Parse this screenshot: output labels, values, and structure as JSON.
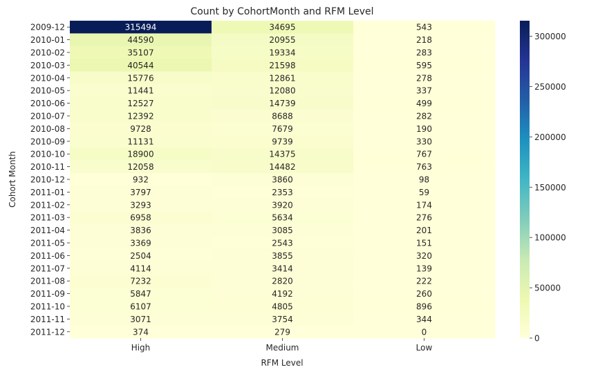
{
  "chart_data": {
    "type": "heatmap",
    "title": "Count by CohortMonth and RFM Level",
    "xlabel": "RFM Level",
    "ylabel": "Cohort Month",
    "x_categories": [
      "High",
      "Medium",
      "Low"
    ],
    "y_categories": [
      "2009-12",
      "2010-01",
      "2010-02",
      "2010-03",
      "2010-04",
      "2010-05",
      "2010-06",
      "2010-07",
      "2010-08",
      "2010-09",
      "2010-10",
      "2010-11",
      "2010-12",
      "2011-01",
      "2011-02",
      "2011-03",
      "2011-04",
      "2011-05",
      "2011-06",
      "2011-07",
      "2011-08",
      "2011-09",
      "2011-10",
      "2011-11",
      "2011-12"
    ],
    "values": [
      [
        315494,
        34695,
        543
      ],
      [
        44590,
        20955,
        218
      ],
      [
        35107,
        19334,
        283
      ],
      [
        40544,
        21598,
        595
      ],
      [
        15776,
        12861,
        278
      ],
      [
        11441,
        12080,
        337
      ],
      [
        12527,
        14739,
        499
      ],
      [
        12392,
        8688,
        282
      ],
      [
        9728,
        7679,
        190
      ],
      [
        11131,
        9739,
        330
      ],
      [
        18900,
        14375,
        767
      ],
      [
        12058,
        14482,
        763
      ],
      [
        932,
        3860,
        98
      ],
      [
        3797,
        2353,
        59
      ],
      [
        3293,
        3920,
        174
      ],
      [
        6958,
        5634,
        276
      ],
      [
        3836,
        3085,
        201
      ],
      [
        3369,
        2543,
        151
      ],
      [
        2504,
        3855,
        320
      ],
      [
        4114,
        3414,
        139
      ],
      [
        7232,
        2820,
        222
      ],
      [
        5847,
        4192,
        260
      ],
      [
        6107,
        4805,
        896
      ],
      [
        3071,
        3754,
        344
      ],
      [
        374,
        279,
        0
      ]
    ],
    "colormap": "YlGnBu",
    "color_range": [
      0,
      315494
    ],
    "colorbar_ticks": [
      0,
      50000,
      100000,
      150000,
      200000,
      250000,
      300000
    ],
    "annotations": true,
    "annotation_dark_color": "#262626",
    "annotation_light_color": "#ffffff"
  }
}
